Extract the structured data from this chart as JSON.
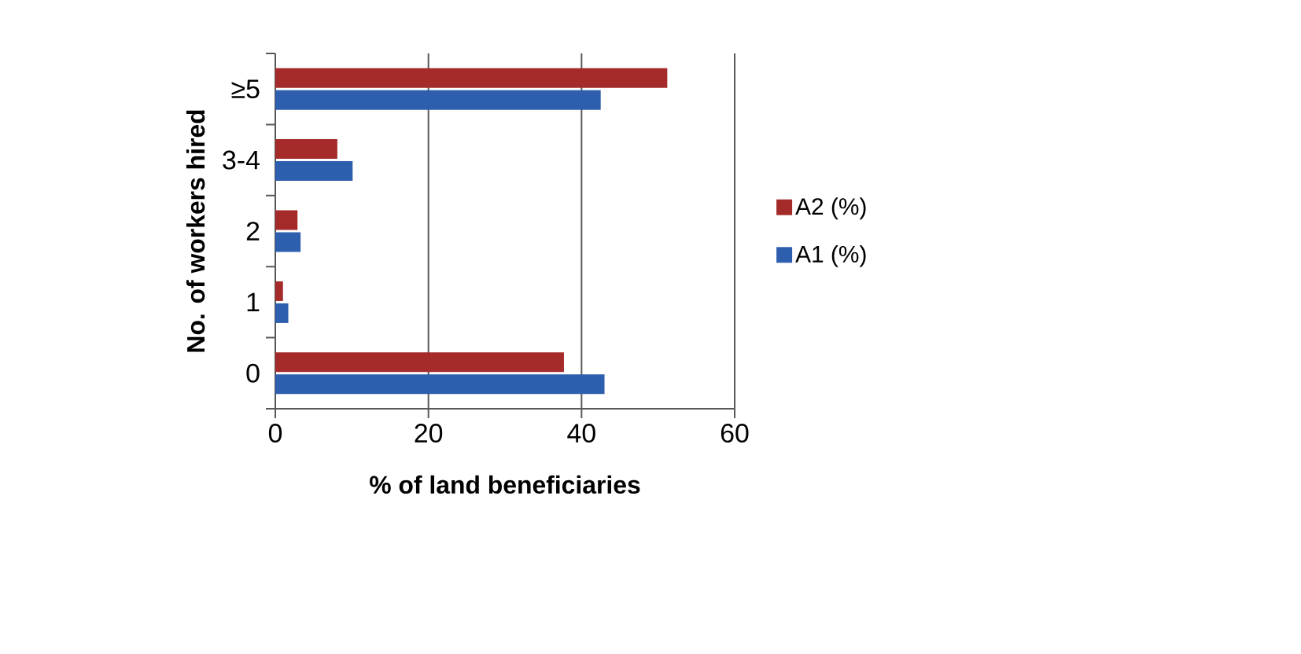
{
  "chart_data": {
    "type": "bar",
    "orientation": "horizontal",
    "xlabel": "% of land beneficiaries",
    "ylabel": "No. of workers hired",
    "categories": [
      "≥5",
      "3-4",
      "2",
      "1",
      "0"
    ],
    "series": [
      {
        "name": "A2 (%)",
        "color": "#a52a2a",
        "values": [
          51.2,
          8.1,
          2.9,
          1.0,
          37.7
        ]
      },
      {
        "name": "A1  (%)",
        "color": "#2e5fae",
        "values": [
          42.5,
          10.1,
          3.3,
          1.7,
          43.0
        ]
      }
    ],
    "xlim": [
      0,
      60
    ],
    "xticks": [
      0,
      20,
      40,
      60
    ],
    "grid": "x",
    "legend": "right"
  }
}
